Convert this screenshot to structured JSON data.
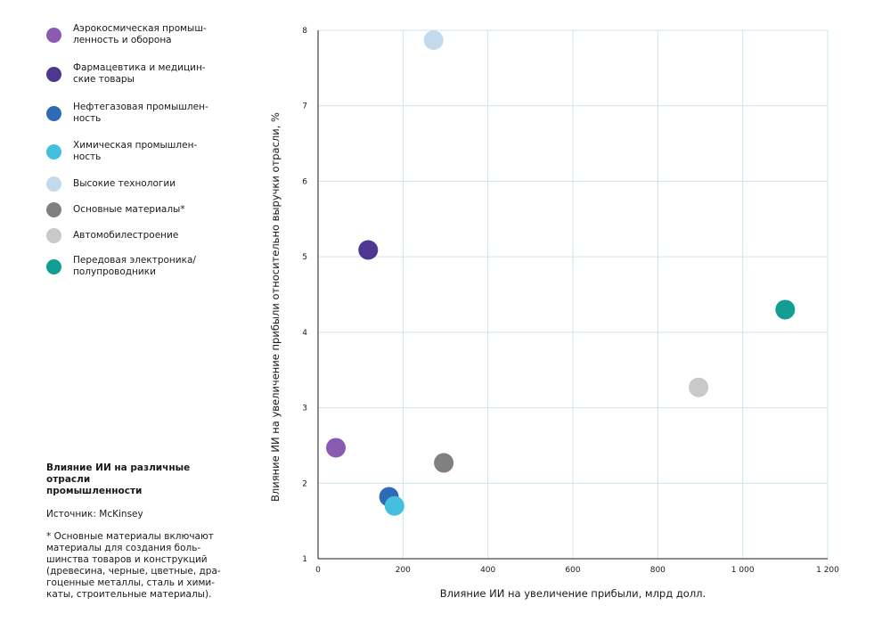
{
  "chart_data": {
    "type": "scatter",
    "title": "",
    "xlabel": "Влияние ИИ на увеличение прибыли, млрд долл.",
    "ylabel": "Влияние ИИ на увеличение прибыли относительно выручки отрасли, %",
    "xlim": [
      0,
      1200
    ],
    "ylim": [
      1,
      8
    ],
    "xticks": [
      0,
      200,
      400,
      600,
      800,
      1000,
      1200
    ],
    "xtick_labels": [
      "0",
      "200",
      "400",
      "600",
      "800",
      "1 000",
      "1 200"
    ],
    "yticks": [
      1,
      2,
      3,
      4,
      5,
      6,
      7,
      8
    ],
    "ytick_labels": [
      "1",
      "2",
      "3",
      "4",
      "5",
      "6",
      "7",
      "8"
    ],
    "grid": true,
    "legend_position": "left",
    "series": [
      {
        "name": "Аэрокосмическая промыш-\nленность и оборона",
        "color": "#8a5bb0",
        "x": 42,
        "y": 2.47
      },
      {
        "name": "Фармацевтика и медицин-\nские товары",
        "color": "#4e3791",
        "x": 118,
        "y": 5.09
      },
      {
        "name": "Нефтегазовая промышлен-\nность",
        "color": "#2e6bb5",
        "x": 167,
        "y": 1.82
      },
      {
        "name": "Химическая промышлен-\nность",
        "color": "#45bfe0",
        "x": 180,
        "y": 1.7
      },
      {
        "name": "Высокие технологии",
        "color": "#c3daec",
        "x": 272,
        "y": 7.87
      },
      {
        "name": "Основные материалы*",
        "color": "#808080",
        "x": 296,
        "y": 2.27
      },
      {
        "name": "Автомобилестроение",
        "color": "#c9c9c9",
        "x": 896,
        "y": 3.27
      },
      {
        "name": "Передовая электроника/\nполупроводники",
        "color": "#139e94",
        "x": 1100,
        "y": 4.3
      }
    ]
  },
  "caption": {
    "title": "Влияние ИИ на различные отрасли\nпромышленности",
    "source": "Источник: McKinsey",
    "note": "* Основные материалы включают\nматериалы для создания боль-\nшинства товаров и конструкций\n(древесина, черные, цветные, дра-\nгоценные металлы, сталь и хими-\nкаты, строительные материалы)."
  },
  "colors": {
    "grid": "#cfe3ee",
    "axis": "#1a1a1a"
  }
}
